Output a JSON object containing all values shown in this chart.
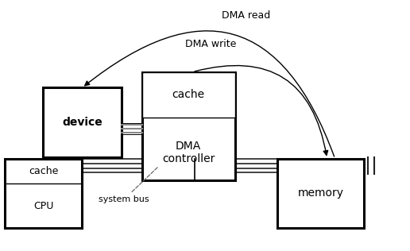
{
  "bg_color": "#ffffff",
  "fig_w": 5.16,
  "fig_h": 3.16,
  "dma_read_label": "DMA read",
  "dma_write_label": "DMA write",
  "system_bus_label": "system bus"
}
